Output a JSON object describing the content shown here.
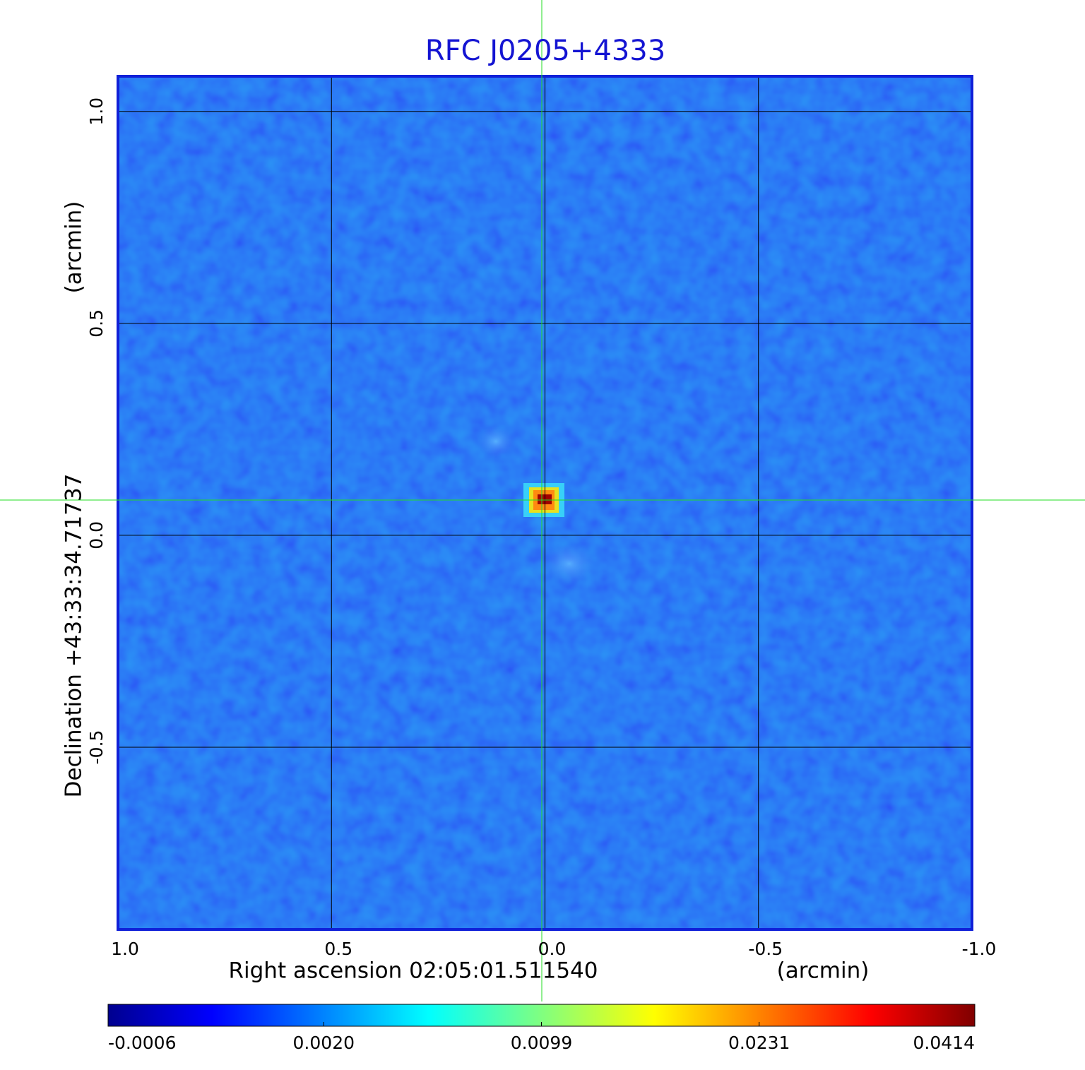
{
  "chart_data": {
    "type": "image",
    "title": "RFC J0205+4333",
    "x_label": "Right ascension  02:05:01.511540",
    "x_unit": "(arcmin)",
    "y_label": "Declination  +43:33:34.71737",
    "y_unit": "(arcmin)",
    "xlim": [
      1.0,
      -1.0
    ],
    "ylim": [
      -0.93,
      1.083
    ],
    "xticks": [
      {
        "value": 1.0,
        "label": "1.0"
      },
      0.5,
      {
        "value": 0.0,
        "label": "0.0"
      },
      -0.5,
      {
        "value": -1.0,
        "label": "-1.0"
      }
    ],
    "yticks": [
      -0.5,
      {
        "value": 0.0,
        "label": "0.0"
      },
      0.5,
      {
        "value": 1.0,
        "label": "1.0"
      }
    ],
    "grid": true,
    "colorbar": {
      "colormap": "jet",
      "scale": "sqrt",
      "lim": [
        -0.0006,
        0.0414
      ],
      "ticks": [
        -0.0006,
        {
          "value": 0.002,
          "label": "0.0020"
        },
        0.0099,
        0.0231,
        0.0414
      ]
    }
  }
}
